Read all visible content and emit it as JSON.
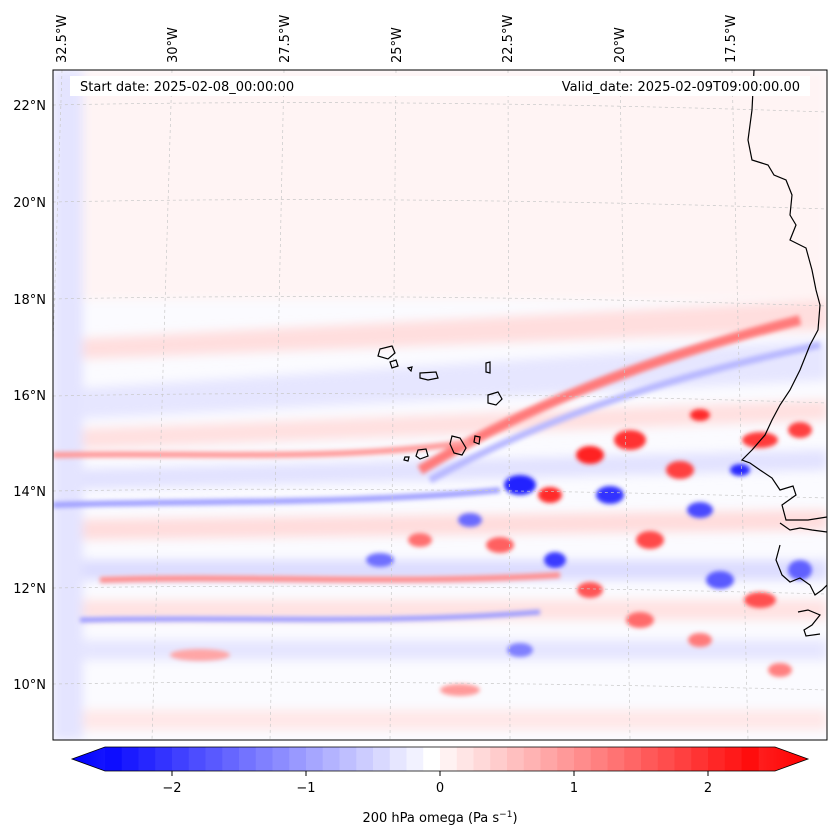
{
  "map": {
    "start_date": "Start date: 2025-02-08_00:00:00",
    "valid_date": "Valid_date: 2025-02-09T09:00:00.00",
    "lon_labels": [
      "32.5°W",
      "30°W",
      "27.5°W",
      "25°W",
      "22.5°W",
      "20°W",
      "17.5°W"
    ],
    "lat_labels": [
      "22°N",
      "20°N",
      "18°N",
      "16°N",
      "14°N",
      "12°N",
      "10°N"
    ]
  },
  "colorbar": {
    "label_prefix": "200 hPa omega (Pa s",
    "label_exp": "−1",
    "label_suffix": ")",
    "ticks": [
      "−2",
      "−1",
      "0",
      "1",
      "2"
    ],
    "min": -2.7,
    "max": 2.7
  },
  "colors": {
    "negative": "#0000ff",
    "positive": "#ff0000",
    "neutral": "#ffffff",
    "coast": "#000000",
    "grid": "#b0b0b0"
  }
}
